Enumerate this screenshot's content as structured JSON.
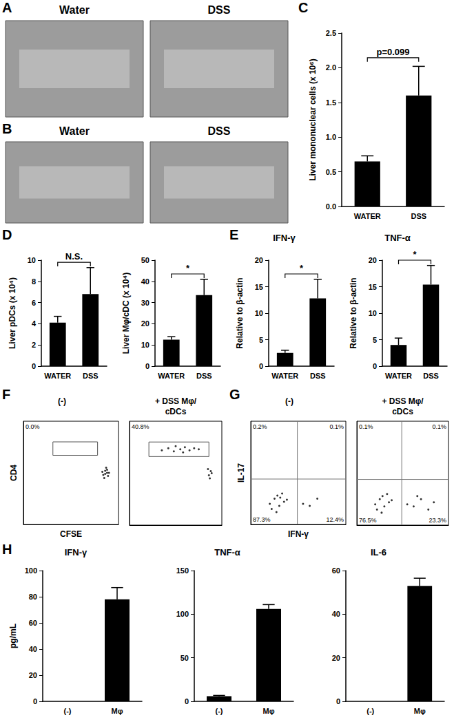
{
  "chart_data": [
    {
      "panel": "A",
      "type": "image",
      "labels": [
        "Water",
        "DSS"
      ]
    },
    {
      "panel": "B",
      "type": "image",
      "labels": [
        "Water",
        "DSS"
      ]
    },
    {
      "panel": "C",
      "type": "bar",
      "ylabel": "Liver mononuclear cells (x 10⁶)",
      "categories": [
        "WATER",
        "DSS"
      ],
      "values": [
        0.65,
        1.6
      ],
      "errors": [
        0.08,
        0.42
      ],
      "color": "#000000",
      "ylim": [
        0,
        2.5
      ],
      "yticks": [
        {
          "value": 0,
          "label": "0.0"
        },
        0.5,
        {
          "value": 1,
          "label": "1.0"
        },
        1.5,
        {
          "value": 2,
          "label": "2.0"
        },
        2.5
      ],
      "annotation": "p=0.099"
    },
    {
      "panel": "D",
      "type": "bar",
      "ylabel": "Liver pDCs (x 10⁴)",
      "categories": [
        "WATER",
        "DSS"
      ],
      "values": [
        4.1,
        6.8
      ],
      "errors": [
        0.6,
        2.5
      ],
      "color": "#000000",
      "ylim": [
        0,
        10
      ],
      "yticks": [
        0,
        2,
        4,
        6,
        8,
        10
      ],
      "annotation": "N.S."
    },
    {
      "type": "bar",
      "ylabel": "Liver Mφ/cDC (x 10⁴)",
      "categories": [
        "WATER",
        "DSS"
      ],
      "values": [
        12.5,
        33.5
      ],
      "errors": [
        1.4,
        7.5
      ],
      "color": "#000000",
      "ylim": [
        0,
        50
      ],
      "yticks": [
        0,
        10,
        20,
        30,
        40,
        50
      ],
      "annotation": "*"
    },
    {
      "panel": "E",
      "type": "bar",
      "title": "IFN-γ",
      "ylabel": "Relative to β-actin",
      "categories": [
        "WATER",
        "DSS"
      ],
      "values": [
        2.5,
        12.8
      ],
      "errors": [
        0.5,
        3.6
      ],
      "color": "#000000",
      "ylim": [
        0,
        20
      ],
      "yticks": [
        0,
        5,
        10,
        15,
        20
      ],
      "annotation": "*"
    },
    {
      "type": "bar",
      "title": "TNF-α",
      "ylabel": "Relative to β-actin",
      "categories": [
        "WATER",
        "DSS"
      ],
      "values": [
        4,
        15.4
      ],
      "errors": [
        1.3,
        3.6
      ],
      "color": "#000000",
      "ylim": [
        0,
        20
      ],
      "yticks": [
        0,
        5,
        10,
        15,
        20
      ],
      "annotation": "*"
    },
    {
      "panel": "F",
      "type": "scatter",
      "title": "(-)",
      "xlabel": "CFSE",
      "ylabel": "CD4",
      "xlim": [
        0,
        100
      ],
      "ylim": [
        0,
        100
      ],
      "tick_labels": false,
      "x": [
        84,
        86,
        88,
        85,
        87,
        89,
        83,
        86,
        88,
        90
      ],
      "values": [
        48,
        52,
        50,
        45,
        55,
        47,
        51,
        49,
        53,
        50
      ],
      "gate": {
        "x": [
          31,
          78
        ],
        "y": [
          67,
          80
        ],
        "label": "0.0%"
      }
    },
    {
      "type": "scatter",
      "title": "+ DSS Mφ/cDCs",
      "xlim": [
        0,
        100
      ],
      "ylim": [
        0,
        100
      ],
      "tick_labels": false,
      "x": [
        35,
        42,
        48,
        55,
        60,
        65,
        70,
        75,
        50,
        58,
        86,
        88,
        87,
        89,
        85
      ],
      "values": [
        72,
        74,
        71,
        73,
        75,
        72,
        74,
        73,
        76,
        70,
        48,
        52,
        45,
        50,
        54
      ],
      "gate": {
        "x": [
          21,
          86
        ],
        "y": [
          66,
          80
        ],
        "label": "40.8%"
      }
    },
    {
      "panel": "G",
      "type": "scatter",
      "title": "(-)",
      "xlabel": "IFN-γ",
      "ylabel": "IL-17",
      "xlim": [
        0,
        100
      ],
      "ylim": [
        0,
        100
      ],
      "tick_labels": false,
      "x": [
        20,
        25,
        30,
        28,
        35,
        33,
        22,
        38,
        27,
        31,
        55,
        62,
        70
      ],
      "values": [
        20,
        25,
        18,
        28,
        22,
        30,
        15,
        24,
        12,
        26,
        20,
        18,
        25
      ],
      "quadrants": {
        "x": 49,
        "y": 44,
        "labels": [
          "0.2%",
          "0.1%",
          "87.3%",
          "12.4%"
        ]
      }
    },
    {
      "type": "scatter",
      "title": "+ DSS Mφ/cDCs",
      "xlim": [
        0,
        100
      ],
      "ylim": [
        0,
        100
      ],
      "tick_labels": false,
      "x": [
        20,
        25,
        30,
        28,
        35,
        33,
        22,
        38,
        27,
        55,
        62,
        70,
        78,
        66,
        84
      ],
      "values": [
        20,
        25,
        18,
        28,
        22,
        30,
        15,
        24,
        12,
        20,
        18,
        25,
        15,
        28,
        22
      ],
      "quadrants": {
        "x": 49,
        "y": 44,
        "labels": [
          "0.1%",
          "0.1%",
          "76.5%",
          "23.3%"
        ]
      }
    },
    {
      "panel": "H",
      "type": "bar",
      "title": "IFN-γ",
      "ylabel": "pg/mL",
      "categories": [
        "(-)",
        "Mφ"
      ],
      "values": [
        0,
        78
      ],
      "errors": [
        0,
        9
      ],
      "color": "#000000",
      "ylim": [
        0,
        100
      ],
      "yticks": [
        0,
        20,
        40,
        60,
        80,
        100
      ]
    },
    {
      "type": "bar",
      "title": "TNF-α",
      "categories": [
        "(-)",
        "Mφ"
      ],
      "values": [
        6,
        106
      ],
      "errors": [
        0.8,
        5
      ],
      "color": "#000000",
      "ylim": [
        0,
        150
      ],
      "yticks": [
        0,
        50,
        100,
        150
      ]
    },
    {
      "type": "bar",
      "title": "IL-6",
      "categories": [
        "(-)",
        "Mφ"
      ],
      "values": [
        0,
        53
      ],
      "errors": [
        0,
        3.5
      ],
      "color": "#000000",
      "ylim": [
        0,
        60
      ],
      "yticks": [
        0,
        20,
        40,
        60
      ]
    }
  ]
}
